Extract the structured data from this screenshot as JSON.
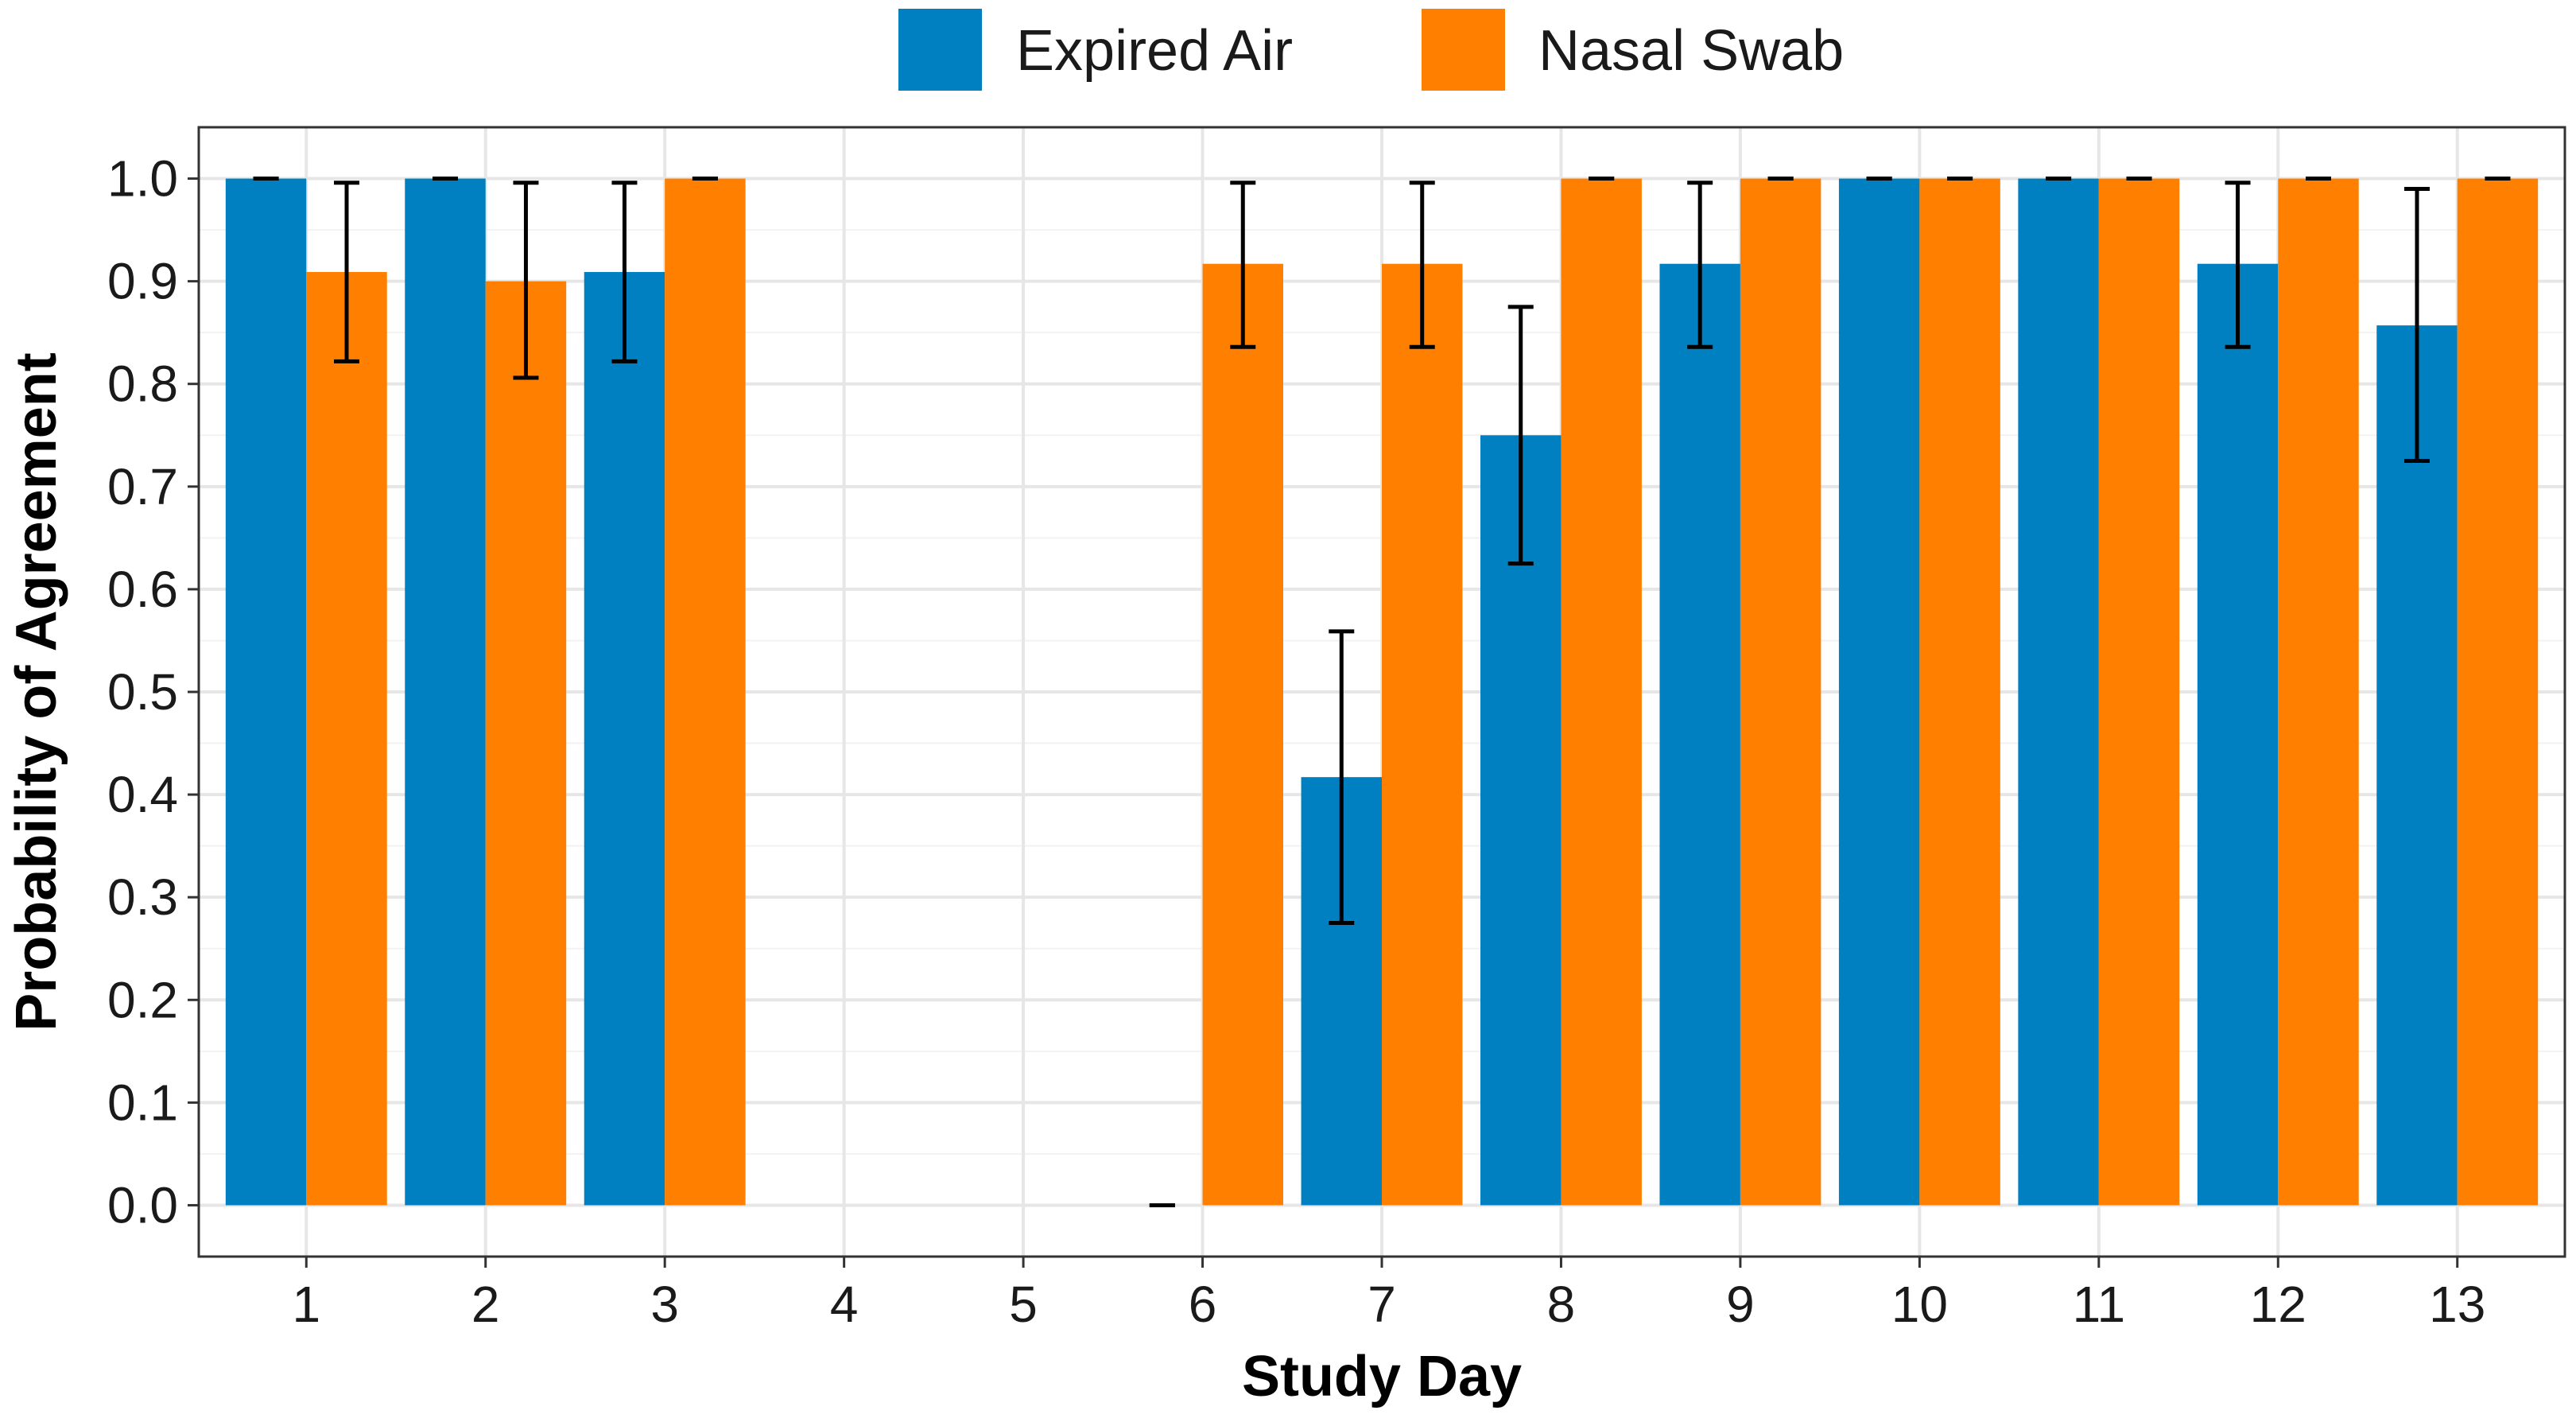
{
  "chart_data": {
    "type": "bar",
    "title": "",
    "xlabel": "Study Day",
    "ylabel": "Probability of Agreement",
    "categories": [
      "1",
      "2",
      "3",
      "4",
      "5",
      "6",
      "7",
      "8",
      "9",
      "10",
      "11",
      "12",
      "13"
    ],
    "ylim": [
      -0.05,
      1.05
    ],
    "yticks": [
      "0.0",
      "0.1",
      "0.2",
      "0.3",
      "0.4",
      "0.5",
      "0.6",
      "0.7",
      "0.8",
      "0.9",
      "1.0"
    ],
    "grid": true,
    "legend_position": "top",
    "series": [
      {
        "name": "Expired Air",
        "color": "#0080C0",
        "values": [
          1.0,
          1.0,
          0.909,
          null,
          null,
          0.0,
          0.417,
          0.75,
          0.917,
          1.0,
          1.0,
          0.917,
          0.857
        ],
        "error_low": [
          1.0,
          1.0,
          0.822,
          null,
          null,
          0.0,
          0.275,
          0.625,
          0.836,
          1.0,
          1.0,
          0.836,
          0.725
        ],
        "error_high": [
          1.0,
          1.0,
          0.996,
          null,
          null,
          0.0,
          0.559,
          0.875,
          0.996,
          1.0,
          1.0,
          0.996,
          0.99
        ]
      },
      {
        "name": "Nasal Swab",
        "color": "#FF8000",
        "values": [
          0.909,
          0.9,
          1.0,
          null,
          null,
          0.917,
          0.917,
          1.0,
          1.0,
          1.0,
          1.0,
          1.0,
          1.0
        ],
        "error_low": [
          0.822,
          0.806,
          1.0,
          null,
          null,
          0.836,
          0.836,
          1.0,
          1.0,
          1.0,
          1.0,
          1.0,
          1.0
        ],
        "error_high": [
          0.996,
          0.996,
          1.0,
          null,
          null,
          0.996,
          0.996,
          1.0,
          1.0,
          1.0,
          1.0,
          1.0,
          1.0
        ]
      }
    ]
  }
}
